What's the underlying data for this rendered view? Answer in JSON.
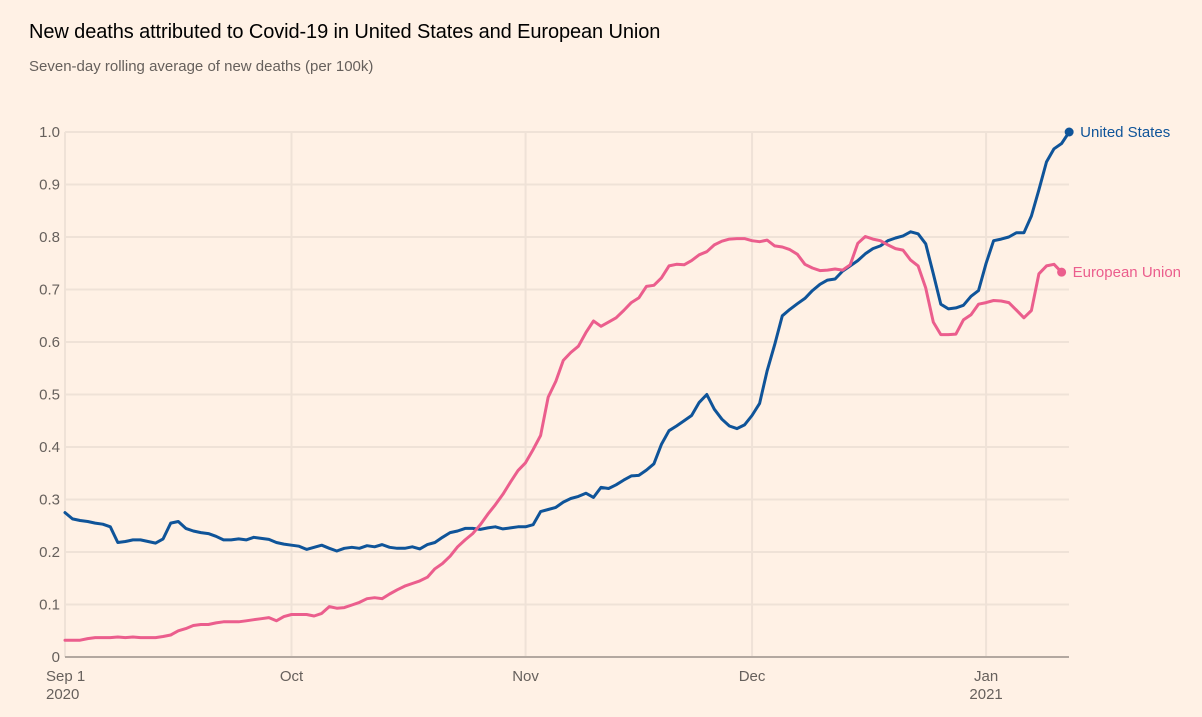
{
  "header": {
    "title": "New deaths attributed to Covid-19 in United States and European Union",
    "subtitle": "Seven-day rolling average of new deaths (per 100k)"
  },
  "chart_data": {
    "type": "line",
    "title": "New deaths attributed to Covid-19 in United States and European Union",
    "subtitle": "Seven-day rolling average of new deaths (per 100k)",
    "xlabel": "",
    "ylabel": "",
    "x_start": "2020-09-01",
    "x_unit": "day",
    "xlim_days": [
      0,
      133
    ],
    "ylim": [
      0,
      1.0
    ],
    "grid": true,
    "legend": "inline-right",
    "y_ticks": [
      {
        "value": 0,
        "label": "0"
      },
      {
        "value": 0.1,
        "label": "0.1"
      },
      {
        "value": 0.2,
        "label": "0.2"
      },
      {
        "value": 0.3,
        "label": "0.3"
      },
      {
        "value": 0.4,
        "label": "0.4"
      },
      {
        "value": 0.5,
        "label": "0.5"
      },
      {
        "value": 0.6,
        "label": "0.6"
      },
      {
        "value": 0.7,
        "label": "0.7"
      },
      {
        "value": 0.8,
        "label": "0.8"
      },
      {
        "value": 0.9,
        "label": "0.9"
      },
      {
        "value": 1.0,
        "label": "1.0"
      }
    ],
    "x_ticks": [
      {
        "day": 0,
        "label": "Sep 1",
        "sublabel": "2020"
      },
      {
        "day": 30,
        "label": "Oct",
        "sublabel": ""
      },
      {
        "day": 61,
        "label": "Nov",
        "sublabel": ""
      },
      {
        "day": 91,
        "label": "Dec",
        "sublabel": ""
      },
      {
        "day": 122,
        "label": "Jan",
        "sublabel": "2021"
      }
    ],
    "series": [
      {
        "name": "United States",
        "color": "#0f5499",
        "start_day": 0,
        "values": [
          0.275,
          0.263,
          0.26,
          0.258,
          0.255,
          0.253,
          0.248,
          0.218,
          0.22,
          0.223,
          0.223,
          0.22,
          0.217,
          0.225,
          0.255,
          0.258,
          0.245,
          0.24,
          0.237,
          0.235,
          0.23,
          0.223,
          0.223,
          0.225,
          0.223,
          0.228,
          0.226,
          0.224,
          0.218,
          0.215,
          0.213,
          0.211,
          0.205,
          0.209,
          0.213,
          0.207,
          0.202,
          0.207,
          0.209,
          0.207,
          0.212,
          0.21,
          0.214,
          0.209,
          0.207,
          0.207,
          0.21,
          0.206,
          0.214,
          0.218,
          0.228,
          0.237,
          0.24,
          0.245,
          0.245,
          0.243,
          0.246,
          0.248,
          0.244,
          0.246,
          0.248,
          0.248,
          0.252,
          0.277,
          0.281,
          0.285,
          0.295,
          0.302,
          0.306,
          0.312,
          0.304,
          0.323,
          0.321,
          0.328,
          0.337,
          0.345,
          0.346,
          0.356,
          0.368,
          0.405,
          0.431,
          0.44,
          0.45,
          0.46,
          0.485,
          0.5,
          0.472,
          0.453,
          0.44,
          0.435,
          0.442,
          0.46,
          0.483,
          0.545,
          0.595,
          0.65,
          0.662,
          0.673,
          0.683,
          0.698,
          0.71,
          0.718,
          0.72,
          0.735,
          0.745,
          0.755,
          0.768,
          0.778,
          0.783,
          0.793,
          0.798,
          0.802,
          0.81,
          0.806,
          0.787,
          0.73,
          0.672,
          0.663,
          0.665,
          0.67,
          0.687,
          0.698,
          0.75,
          0.793,
          0.796,
          0.8,
          0.808,
          0.808,
          0.84,
          0.89,
          0.943,
          0.968,
          0.978,
          1.0
        ]
      },
      {
        "name": "European Union",
        "color": "#eb5e8d",
        "start_day": 0,
        "values": [
          0.032,
          0.032,
          0.032,
          0.035,
          0.037,
          0.037,
          0.037,
          0.038,
          0.037,
          0.038,
          0.037,
          0.037,
          0.037,
          0.039,
          0.042,
          0.05,
          0.054,
          0.06,
          0.062,
          0.062,
          0.065,
          0.067,
          0.067,
          0.067,
          0.069,
          0.071,
          0.073,
          0.075,
          0.069,
          0.077,
          0.081,
          0.081,
          0.081,
          0.078,
          0.083,
          0.096,
          0.093,
          0.094,
          0.099,
          0.104,
          0.111,
          0.113,
          0.111,
          0.12,
          0.128,
          0.135,
          0.14,
          0.145,
          0.152,
          0.168,
          0.178,
          0.192,
          0.21,
          0.223,
          0.235,
          0.252,
          0.272,
          0.29,
          0.31,
          0.333,
          0.355,
          0.37,
          0.395,
          0.422,
          0.495,
          0.525,
          0.565,
          0.58,
          0.592,
          0.618,
          0.64,
          0.63,
          0.638,
          0.646,
          0.66,
          0.675,
          0.684,
          0.706,
          0.708,
          0.722,
          0.745,
          0.748,
          0.747,
          0.755,
          0.766,
          0.772,
          0.785,
          0.792,
          0.796,
          0.797,
          0.797,
          0.793,
          0.791,
          0.794,
          0.783,
          0.781,
          0.776,
          0.767,
          0.748,
          0.741,
          0.736,
          0.737,
          0.739,
          0.737,
          0.747,
          0.788,
          0.801,
          0.796,
          0.793,
          0.785,
          0.778,
          0.775,
          0.756,
          0.745,
          0.703,
          0.638,
          0.614,
          0.614,
          0.615,
          0.642,
          0.652,
          0.672,
          0.675,
          0.679,
          0.678,
          0.675,
          0.661,
          0.646,
          0.66,
          0.73,
          0.745,
          0.748,
          0.733
        ]
      }
    ]
  }
}
